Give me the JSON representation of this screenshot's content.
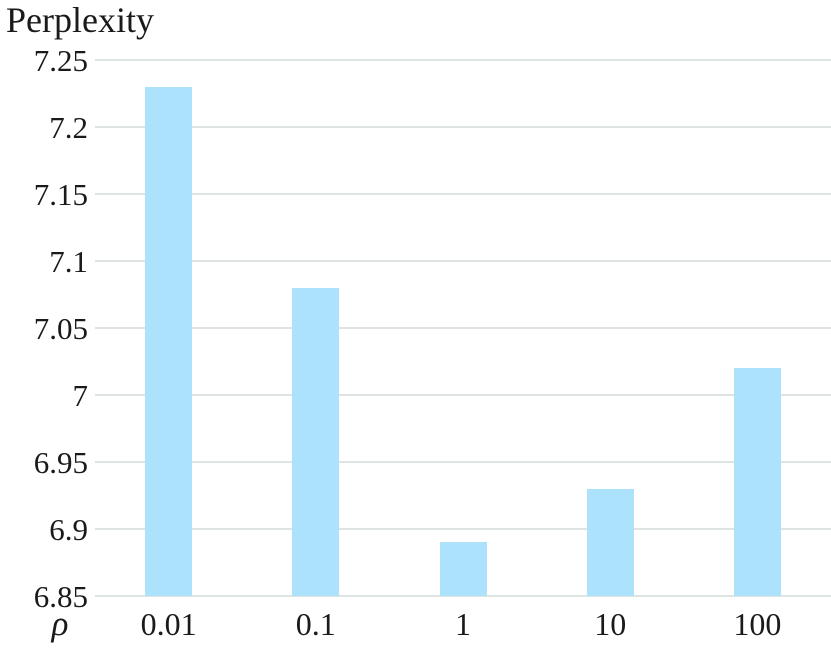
{
  "chart_data": {
    "type": "bar",
    "title": "Perplexity",
    "xlabel": "ρ",
    "ylabel": "Perplexity",
    "categories": [
      "0.01",
      "0.1",
      "1",
      "10",
      "100"
    ],
    "values": [
      7.23,
      7.08,
      6.89,
      6.93,
      7.02
    ],
    "series": [
      {
        "name": "Perplexity",
        "values": [
          7.23,
          7.08,
          6.89,
          6.93,
          7.02
        ]
      }
    ],
    "ylim": [
      6.85,
      7.25
    ],
    "ytick_step": 0.05,
    "yticks": [
      {
        "value": 7.25,
        "label": "7.25"
      },
      {
        "value": 7.2,
        "label": "7.2"
      },
      {
        "value": 7.15,
        "label": "7.15"
      },
      {
        "value": 7.1,
        "label": "7.1"
      },
      {
        "value": 7.05,
        "label": "7.05"
      },
      {
        "value": 7.0,
        "label": "7"
      },
      {
        "value": 6.95,
        "label": "6.95"
      },
      {
        "value": 6.9,
        "label": "6.9"
      },
      {
        "value": 6.85,
        "label": "6.85"
      }
    ],
    "grid": true,
    "legend": false,
    "colors": {
      "bar": "#ACE2FC",
      "gridline": "#DEE4E2",
      "text": "#1A1A1A",
      "background": "#FFFFFF"
    }
  }
}
